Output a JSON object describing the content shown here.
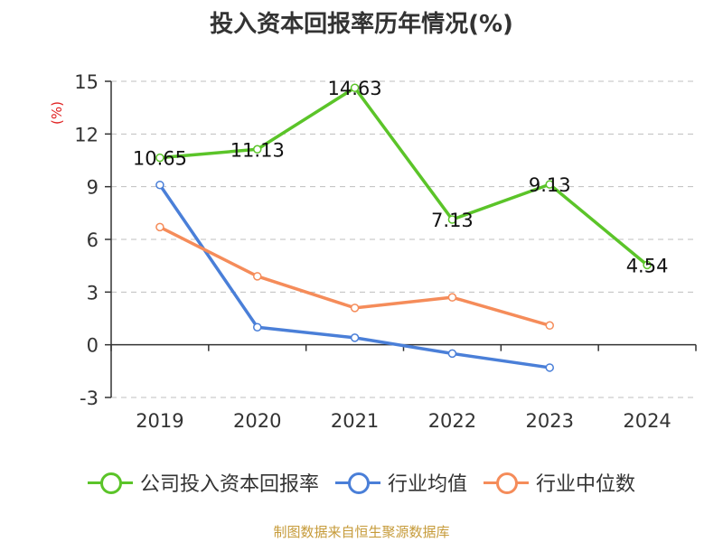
{
  "title": "投入资本回报率历年情况(%)",
  "source": "制图数据来自恒生聚源数据库",
  "colors": {
    "company": "#5bc429",
    "avg": "#4a7fd8",
    "median": "#f58c5a",
    "unit": "#e02020",
    "source": "#c69b3a",
    "grid": "#bfbfbf",
    "axis": "#333333"
  },
  "chart_data": {
    "type": "line",
    "title": "投入资本回报率历年情况(%)",
    "ylabel": "(%)",
    "xlabel": "",
    "categories": [
      "2019",
      "2020",
      "2021",
      "2022",
      "2023",
      "2024"
    ],
    "ylim": [
      -3,
      15
    ],
    "yticks": [
      -3,
      0,
      3,
      6,
      9,
      12,
      15
    ],
    "grid": true,
    "legend_position": "bottom",
    "series": [
      {
        "name": "公司投入资本回报率",
        "color": "#5bc429",
        "values": [
          10.65,
          11.13,
          14.63,
          7.13,
          9.13,
          4.54
        ],
        "labels": [
          "10.65",
          "11.13",
          "14.63",
          "7.13",
          "9.13",
          "4.54"
        ]
      },
      {
        "name": "行业均值",
        "color": "#4a7fd8",
        "values": [
          9.1,
          1.0,
          0.4,
          -0.5,
          -1.3,
          null
        ]
      },
      {
        "name": "行业中位数",
        "color": "#f58c5a",
        "values": [
          6.7,
          3.9,
          2.1,
          2.7,
          1.1,
          null
        ]
      }
    ]
  }
}
